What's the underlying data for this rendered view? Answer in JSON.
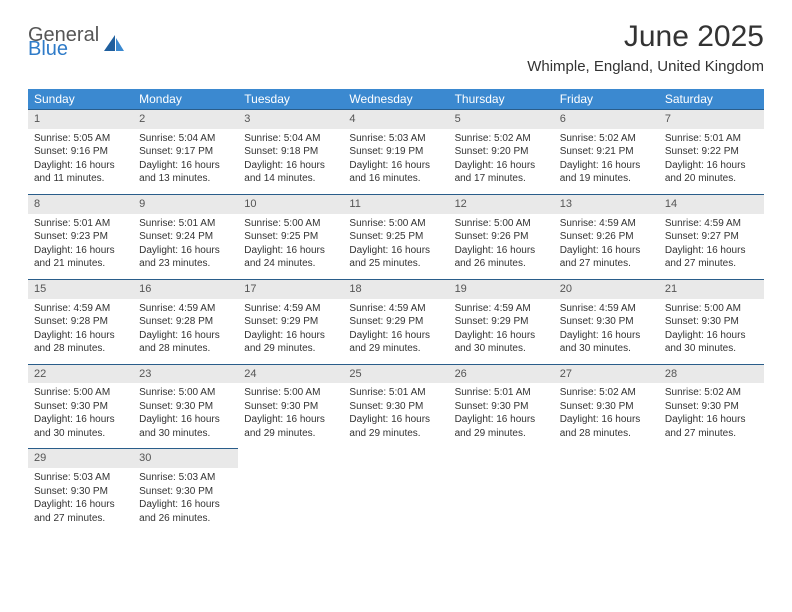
{
  "logo": {
    "general": "General",
    "blue": "Blue"
  },
  "title": "June 2025",
  "location": "Whimple, England, United Kingdom",
  "colors": {
    "header_bg": "#3b89d0",
    "daynum_bg": "#e9e9e9",
    "daynum_border": "#2a5d8a",
    "text": "#333333",
    "logo_gray": "#565656",
    "logo_blue": "#2f7bc8"
  },
  "weekdays": [
    "Sunday",
    "Monday",
    "Tuesday",
    "Wednesday",
    "Thursday",
    "Friday",
    "Saturday"
  ],
  "weeks": [
    [
      {
        "n": "1",
        "sr": "5:05 AM",
        "ss": "9:16 PM",
        "dl": "16 hours and 11 minutes."
      },
      {
        "n": "2",
        "sr": "5:04 AM",
        "ss": "9:17 PM",
        "dl": "16 hours and 13 minutes."
      },
      {
        "n": "3",
        "sr": "5:04 AM",
        "ss": "9:18 PM",
        "dl": "16 hours and 14 minutes."
      },
      {
        "n": "4",
        "sr": "5:03 AM",
        "ss": "9:19 PM",
        "dl": "16 hours and 16 minutes."
      },
      {
        "n": "5",
        "sr": "5:02 AM",
        "ss": "9:20 PM",
        "dl": "16 hours and 17 minutes."
      },
      {
        "n": "6",
        "sr": "5:02 AM",
        "ss": "9:21 PM",
        "dl": "16 hours and 19 minutes."
      },
      {
        "n": "7",
        "sr": "5:01 AM",
        "ss": "9:22 PM",
        "dl": "16 hours and 20 minutes."
      }
    ],
    [
      {
        "n": "8",
        "sr": "5:01 AM",
        "ss": "9:23 PM",
        "dl": "16 hours and 21 minutes."
      },
      {
        "n": "9",
        "sr": "5:01 AM",
        "ss": "9:24 PM",
        "dl": "16 hours and 23 minutes."
      },
      {
        "n": "10",
        "sr": "5:00 AM",
        "ss": "9:25 PM",
        "dl": "16 hours and 24 minutes."
      },
      {
        "n": "11",
        "sr": "5:00 AM",
        "ss": "9:25 PM",
        "dl": "16 hours and 25 minutes."
      },
      {
        "n": "12",
        "sr": "5:00 AM",
        "ss": "9:26 PM",
        "dl": "16 hours and 26 minutes."
      },
      {
        "n": "13",
        "sr": "4:59 AM",
        "ss": "9:26 PM",
        "dl": "16 hours and 27 minutes."
      },
      {
        "n": "14",
        "sr": "4:59 AM",
        "ss": "9:27 PM",
        "dl": "16 hours and 27 minutes."
      }
    ],
    [
      {
        "n": "15",
        "sr": "4:59 AM",
        "ss": "9:28 PM",
        "dl": "16 hours and 28 minutes."
      },
      {
        "n": "16",
        "sr": "4:59 AM",
        "ss": "9:28 PM",
        "dl": "16 hours and 28 minutes."
      },
      {
        "n": "17",
        "sr": "4:59 AM",
        "ss": "9:29 PM",
        "dl": "16 hours and 29 minutes."
      },
      {
        "n": "18",
        "sr": "4:59 AM",
        "ss": "9:29 PM",
        "dl": "16 hours and 29 minutes."
      },
      {
        "n": "19",
        "sr": "4:59 AM",
        "ss": "9:29 PM",
        "dl": "16 hours and 30 minutes."
      },
      {
        "n": "20",
        "sr": "4:59 AM",
        "ss": "9:30 PM",
        "dl": "16 hours and 30 minutes."
      },
      {
        "n": "21",
        "sr": "5:00 AM",
        "ss": "9:30 PM",
        "dl": "16 hours and 30 minutes."
      }
    ],
    [
      {
        "n": "22",
        "sr": "5:00 AM",
        "ss": "9:30 PM",
        "dl": "16 hours and 30 minutes."
      },
      {
        "n": "23",
        "sr": "5:00 AM",
        "ss": "9:30 PM",
        "dl": "16 hours and 30 minutes."
      },
      {
        "n": "24",
        "sr": "5:00 AM",
        "ss": "9:30 PM",
        "dl": "16 hours and 29 minutes."
      },
      {
        "n": "25",
        "sr": "5:01 AM",
        "ss": "9:30 PM",
        "dl": "16 hours and 29 minutes."
      },
      {
        "n": "26",
        "sr": "5:01 AM",
        "ss": "9:30 PM",
        "dl": "16 hours and 29 minutes."
      },
      {
        "n": "27",
        "sr": "5:02 AM",
        "ss": "9:30 PM",
        "dl": "16 hours and 28 minutes."
      },
      {
        "n": "28",
        "sr": "5:02 AM",
        "ss": "9:30 PM",
        "dl": "16 hours and 27 minutes."
      }
    ],
    [
      {
        "n": "29",
        "sr": "5:03 AM",
        "ss": "9:30 PM",
        "dl": "16 hours and 27 minutes."
      },
      {
        "n": "30",
        "sr": "5:03 AM",
        "ss": "9:30 PM",
        "dl": "16 hours and 26 minutes."
      },
      null,
      null,
      null,
      null,
      null
    ]
  ],
  "labels": {
    "sunrise": "Sunrise: ",
    "sunset": "Sunset: ",
    "daylight": "Daylight: "
  }
}
